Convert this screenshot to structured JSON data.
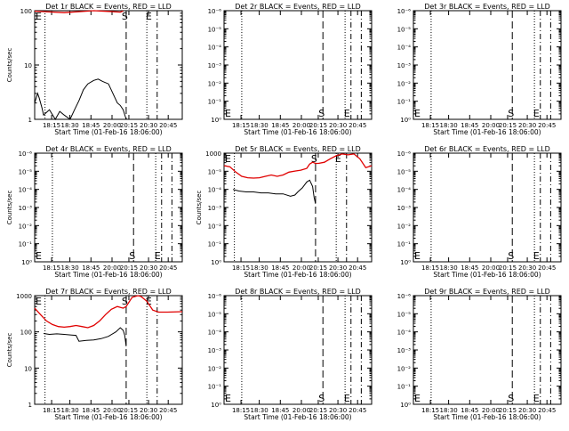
{
  "figure": {
    "time_ticks": [
      "18:15",
      "18:30",
      "18:45",
      "20:00",
      "20:15",
      "20:30",
      "20:45"
    ],
    "xlabel": "Start Time (01-Feb-16 18:06:00)",
    "ylabel": "Counts/sec"
  },
  "chart_data": [
    {
      "type": "line",
      "title": "Det 1r BLACK = Events, RED = LLD",
      "xlabel": "Start Time (01-Feb-16 18:06:00)",
      "ylabel": "Counts/sec",
      "x_ticks": [
        "18:15",
        "18:30",
        "18:45",
        "20:00",
        "20:15",
        "20:30",
        "20:45"
      ],
      "y_scale": "log",
      "ylim": [
        1,
        100
      ],
      "y_ticks": [
        "1",
        "10",
        "100"
      ],
      "markers": {
        "dotted_at": [
          0.07,
          0.76
        ],
        "dashed_at": [
          0.62,
          0.83
        ],
        "S_at": 0.62,
        "E_at": 0.74,
        "left_E": true
      },
      "series": [
        {
          "color": "#000000",
          "x": [
            0.0,
            0.02,
            0.03,
            0.05,
            0.06,
            0.1,
            0.14,
            0.17,
            0.2,
            0.24,
            0.27,
            0.3,
            0.33,
            0.36,
            0.4,
            0.43,
            0.46,
            0.5,
            0.53,
            0.56,
            0.58,
            0.6,
            0.62
          ],
          "y": [
            2,
            3,
            2.5,
            1.6,
            1.2,
            1.5,
            1,
            1.4,
            1.2,
            1,
            1.5,
            2.2,
            3.5,
            4.5,
            5.2,
            5.5,
            5.0,
            4.5,
            3.0,
            2.0,
            1.8,
            1.5,
            1.0
          ]
        },
        {
          "color": "#e00000",
          "x": [
            0.0,
            0.1,
            0.2,
            0.3,
            0.4,
            0.5,
            0.58,
            0.6
          ],
          "y": [
            98,
            95,
            92,
            96,
            100,
            97,
            94,
            99
          ]
        }
      ]
    },
    {
      "type": "line",
      "title": "Det 2r BLACK = Events, RED = LLD",
      "xlabel": "Start Time (01-Feb-16 18:06:00)",
      "x_ticks": [
        "18:15",
        "18:30",
        "18:45",
        "20:00",
        "20:15",
        "20:30",
        "20:45"
      ],
      "y_scale": "log",
      "ylim": [
        1,
        1000000
      ],
      "y_ticks": [
        "10⁰",
        "10⁻¹",
        "10⁻²",
        "10⁻³",
        "10⁻⁴",
        "10⁻⁵",
        "10⁻⁶"
      ],
      "markers": {
        "dotted_at": [
          0.12,
          0.82
        ],
        "dashed_at": [
          0.67,
          0.86,
          0.93
        ],
        "S_at": 0.67,
        "E_at": 0.8,
        "left_E": true
      },
      "series": []
    },
    {
      "type": "line",
      "title": "Det 3r BLACK = Events, RED = LLD",
      "xlabel": "Start Time (01-Feb-16 18:06:00)",
      "x_ticks": [
        "18:15",
        "18:30",
        "18:45",
        "20:00",
        "20:15",
        "20:30",
        "20:45"
      ],
      "y_scale": "log",
      "ylim": [
        1,
        1000000
      ],
      "y_ticks": [
        "10⁰",
        "10⁻¹",
        "10⁻²",
        "10⁻³",
        "10⁻⁴",
        "10⁻⁵",
        "10⁻⁶"
      ],
      "markers": {
        "dotted_at": [
          0.12,
          0.82
        ],
        "dashed_at": [
          0.67,
          0.86,
          0.93
        ],
        "S_at": 0.67,
        "E_at": 0.8,
        "left_E": true
      },
      "series": []
    },
    {
      "type": "line",
      "title": "Det 4r BLACK = Events, RED = LLD",
      "xlabel": "Start Time (01-Feb-16 18:06:00)",
      "ylabel": "Counts/sec",
      "x_ticks": [
        "18:15",
        "18:30",
        "18:45",
        "20:00",
        "20:15",
        "20:30",
        "20:45"
      ],
      "y_scale": "log",
      "ylim": [
        1,
        1000000
      ],
      "y_ticks": [
        "10⁰",
        "10⁻¹",
        "10⁻²",
        "10⁻³",
        "10⁻⁴",
        "10⁻⁵",
        "10⁻⁶"
      ],
      "markers": {
        "dotted_at": [
          0.12,
          0.82
        ],
        "dashed_at": [
          0.67,
          0.86,
          0.93
        ],
        "S_at": 0.67,
        "E_at": 0.8,
        "left_E": true
      },
      "series": []
    },
    {
      "type": "line",
      "title": "Det 5r BLACK = Events, RED = LLD",
      "xlabel": "Start Time (01-Feb-16 18:06:00)",
      "ylabel": "Counts/sec",
      "x_ticks": [
        "18:15",
        "18:30",
        "18:45",
        "20:00",
        "20:15",
        "20:30",
        "20:45"
      ],
      "y_scale": "log",
      "ylim": [
        1,
        1000
      ],
      "y_ticks": [
        "10⁰",
        "10⁻¹",
        "10⁻²",
        "10⁻³",
        "10⁻⁴",
        "10⁻⁵",
        "1000"
      ],
      "markers": {
        "dotted_at": [
          0.07,
          0.76
        ],
        "dashed_at": [
          0.62,
          0.83
        ],
        "S_at": 0.62,
        "E_at": 0.74,
        "left_E": true
      },
      "series": [
        {
          "color": "#000000",
          "x": [
            0.06,
            0.1,
            0.15,
            0.2,
            0.25,
            0.3,
            0.35,
            0.4,
            0.45,
            0.48,
            0.5,
            0.53,
            0.56,
            0.58,
            0.6,
            0.61,
            0.62
          ],
          "y": [
            100,
            90,
            85,
            85,
            80,
            80,
            75,
            75,
            65,
            70,
            85,
            110,
            160,
            180,
            120,
            60,
            40
          ]
        },
        {
          "color": "#e00000",
          "x": [
            0.0,
            0.04,
            0.08,
            0.12,
            0.16,
            0.2,
            0.24,
            0.28,
            0.32,
            0.36,
            0.4,
            0.44,
            0.48,
            0.52,
            0.56,
            0.58,
            0.6,
            0.62,
            0.64,
            0.68,
            0.72,
            0.76,
            0.8,
            0.84,
            0.88,
            0.92,
            0.96,
            1.0
          ],
          "y": [
            450,
            420,
            300,
            230,
            210,
            205,
            210,
            230,
            250,
            230,
            250,
            300,
            320,
            340,
            380,
            500,
            560,
            520,
            520,
            560,
            700,
            850,
            950,
            900,
            950,
            700,
            400,
            450
          ]
        }
      ]
    },
    {
      "type": "line",
      "title": "Det 6r BLACK = Events, RED = LLD",
      "xlabel": "Start Time (01-Feb-16 18:06:00)",
      "x_ticks": [
        "18:15",
        "18:30",
        "18:45",
        "20:00",
        "20:15",
        "20:30",
        "20:45"
      ],
      "y_scale": "log",
      "ylim": [
        1,
        1000000
      ],
      "y_ticks": [
        "10⁰",
        "10⁻¹",
        "10⁻²",
        "10⁻³",
        "10⁻⁴",
        "10⁻⁵",
        "10⁻⁶"
      ],
      "markers": {
        "dotted_at": [
          0.12,
          0.82
        ],
        "dashed_at": [
          0.67,
          0.86,
          0.93
        ],
        "S_at": 0.67,
        "E_at": 0.8,
        "left_E": true
      },
      "series": []
    },
    {
      "type": "line",
      "title": "Det 7r BLACK = Events, RED = LLD",
      "xlabel": "Start Time (01-Feb-16 18:06:00)",
      "ylabel": "Counts/sec",
      "x_ticks": [
        "18:15",
        "18:30",
        "18:45",
        "20:00",
        "20:15",
        "20:30",
        "20:45"
      ],
      "y_scale": "log",
      "ylim": [
        1,
        1000
      ],
      "y_ticks": [
        "1",
        "10",
        "100",
        "1000"
      ],
      "markers": {
        "dotted_at": [
          0.07,
          0.76
        ],
        "dashed_at": [
          0.62,
          0.83
        ],
        "S_at": 0.62,
        "E_at": 0.74,
        "left_E": true
      },
      "series": [
        {
          "color": "#000000",
          "x": [
            0.06,
            0.1,
            0.15,
            0.2,
            0.25,
            0.28,
            0.3,
            0.35,
            0.4,
            0.45,
            0.5,
            0.55,
            0.58,
            0.6,
            0.61,
            0.62
          ],
          "y": [
            90,
            85,
            88,
            85,
            82,
            80,
            55,
            58,
            60,
            65,
            75,
            100,
            130,
            110,
            80,
            40
          ]
        },
        {
          "color": "#e00000",
          "x": [
            0.0,
            0.04,
            0.08,
            0.12,
            0.16,
            0.2,
            0.24,
            0.28,
            0.32,
            0.36,
            0.4,
            0.44,
            0.48,
            0.52,
            0.56,
            0.6,
            0.62,
            0.66,
            0.7,
            0.72,
            0.76,
            0.8,
            0.84,
            0.9,
            1.0
          ],
          "y": [
            450,
            300,
            200,
            160,
            140,
            135,
            140,
            150,
            140,
            130,
            150,
            200,
            300,
            420,
            500,
            450,
            500,
            900,
            1000,
            950,
            700,
            400,
            350,
            350,
            360
          ]
        }
      ]
    },
    {
      "type": "line",
      "title": "Det 8r BLACK = Events, RED = LLD",
      "xlabel": "Start Time (01-Feb-16 18:06:00)",
      "x_ticks": [
        "18:15",
        "18:30",
        "18:45",
        "20:00",
        "20:15",
        "20:30",
        "20:45"
      ],
      "y_scale": "log",
      "ylim": [
        1,
        1000000
      ],
      "y_ticks": [
        "10⁰",
        "10⁻¹",
        "10⁻²",
        "10⁻³",
        "10⁻⁴",
        "10⁻⁵",
        "10⁻⁶"
      ],
      "markers": {
        "dotted_at": [
          0.12,
          0.82
        ],
        "dashed_at": [
          0.67,
          0.86,
          0.93
        ],
        "S_at": 0.67,
        "E_at": 0.8,
        "left_E": true
      },
      "series": []
    },
    {
      "type": "line",
      "title": "Det 9r BLACK = Events, RED = LLD",
      "xlabel": "Start Time (01-Feb-16 18:06:00)",
      "x_ticks": [
        "18:15",
        "18:30",
        "18:45",
        "20:00",
        "20:15",
        "20:30",
        "20:45"
      ],
      "y_scale": "log",
      "ylim": [
        1,
        1000000
      ],
      "y_ticks": [
        "10⁰",
        "10⁻¹",
        "10⁻²",
        "10⁻³",
        "10⁻⁴",
        "10⁻⁵",
        "10⁻⁶"
      ],
      "markers": {
        "dotted_at": [
          0.12,
          0.82
        ],
        "dashed_at": [
          0.67,
          0.86,
          0.93
        ],
        "S_at": 0.67,
        "E_at": 0.8,
        "left_E": true
      },
      "series": []
    }
  ]
}
